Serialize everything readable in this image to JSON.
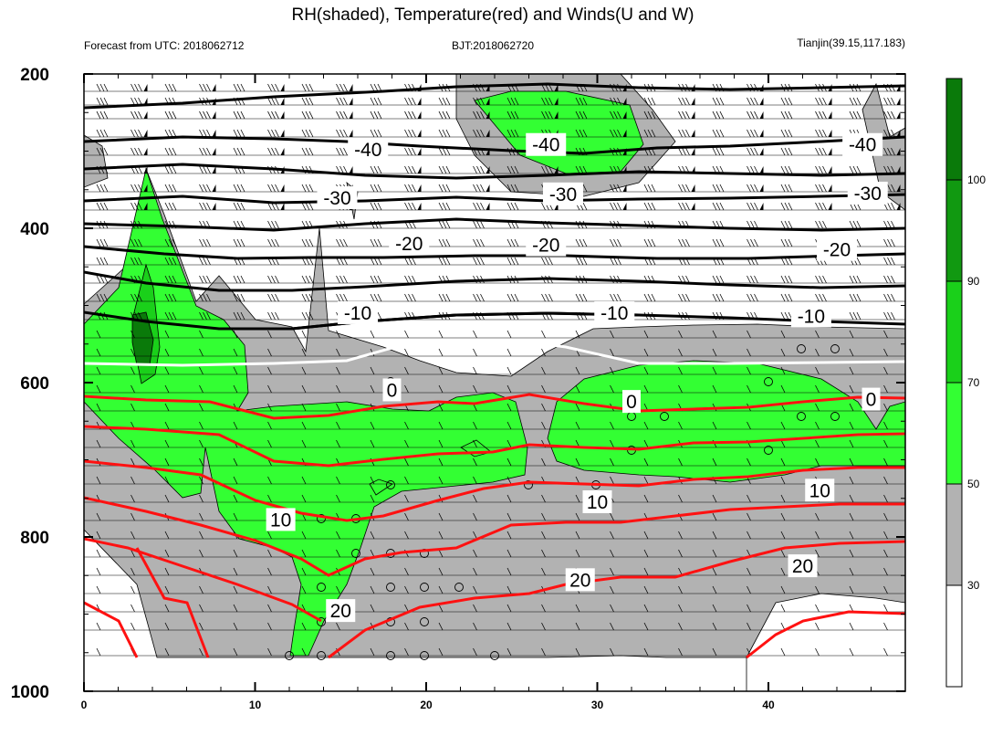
{
  "chart_data": {
    "type": "heatmap",
    "title": "RH(shaded), Temperature(red) and Winds(U and W)",
    "subtitle_left": "Forecast from UTC: 2018062712",
    "subtitle_center": "BJT:2018062720",
    "subtitle_right": "Tianjin(39.15,117.183)",
    "x_ticks": [
      0,
      10,
      20,
      30,
      40
    ],
    "y_ticks": [
      200,
      400,
      600,
      800,
      1000
    ],
    "xlim": [
      0,
      48
    ],
    "ylim": [
      200,
      1000
    ],
    "colorbar": {
      "levels": [
        30,
        50,
        70,
        90,
        100
      ],
      "colors": [
        "#ffffff",
        "#b2b2b2",
        "#33ff33",
        "#1ad01a",
        "#119911",
        "#0a7a0a"
      ]
    },
    "temperature_labels": [
      {
        "value": "-40",
        "x": 16.6,
        "y": 298
      },
      {
        "value": "-40",
        "x": 27.0,
        "y": 292
      },
      {
        "value": "-40",
        "x": 45.5,
        "y": 292
      },
      {
        "value": "-30",
        "x": 14.8,
        "y": 361
      },
      {
        "value": "-30",
        "x": 28.0,
        "y": 356
      },
      {
        "value": "-30",
        "x": 45.8,
        "y": 355
      },
      {
        "value": "-20",
        "x": 19.0,
        "y": 420
      },
      {
        "value": "-20",
        "x": 27.0,
        "y": 422
      },
      {
        "value": "-20",
        "x": 44.0,
        "y": 428
      },
      {
        "value": "-10",
        "x": 16.0,
        "y": 510
      },
      {
        "value": "-10",
        "x": 31.0,
        "y": 510
      },
      {
        "value": "-10",
        "x": 42.5,
        "y": 514
      },
      {
        "value": "0",
        "x": 18.0,
        "y": 610
      },
      {
        "value": "0",
        "x": 32.0,
        "y": 625
      },
      {
        "value": "0",
        "x": 46.0,
        "y": 622
      },
      {
        "value": "10",
        "x": 11.5,
        "y": 778
      },
      {
        "value": "10",
        "x": 30.0,
        "y": 755
      },
      {
        "value": "10",
        "x": 43.0,
        "y": 740
      },
      {
        "value": "20",
        "x": 15.0,
        "y": 896
      },
      {
        "value": "20",
        "x": 29.0,
        "y": 856
      },
      {
        "value": "20",
        "x": 42.0,
        "y": 838
      }
    ]
  }
}
